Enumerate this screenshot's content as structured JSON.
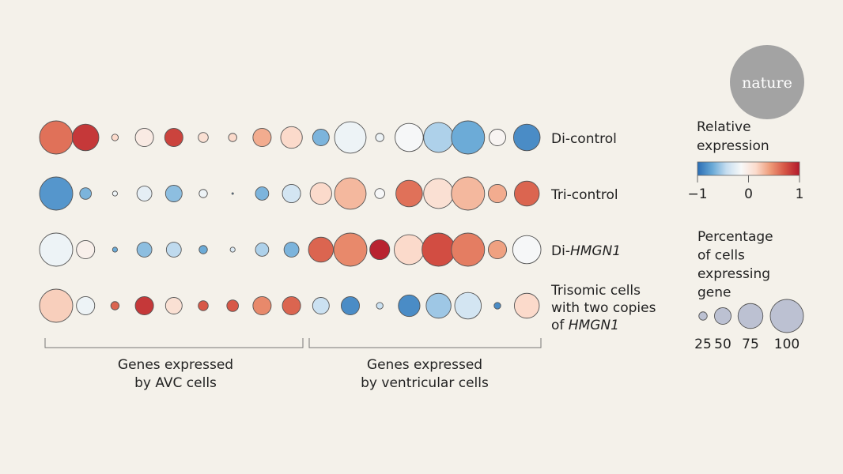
{
  "logo": {
    "text": "nature",
    "color": "#a3a3a3"
  },
  "chart_data": {
    "type": "dot-matrix",
    "rows": [
      {
        "label": "Di-control",
        "label_parts": [
          {
            "text": "Di-control",
            "italic": false
          }
        ]
      },
      {
        "label": "Tri-control",
        "label_parts": [
          {
            "text": "Tri-control",
            "italic": false
          }
        ]
      },
      {
        "label": "Di-HMGN1",
        "label_parts": [
          {
            "text": "Di-",
            "italic": false
          },
          {
            "text": "HMGN1",
            "italic": true
          }
        ]
      },
      {
        "label": "Trisomic cells with two copies of HMGN1",
        "lines": [
          [
            {
              "text": "Trisomic cells",
              "italic": false
            }
          ],
          [
            {
              "text": "with two copies",
              "italic": false
            }
          ],
          [
            {
              "text": "of ",
              "italic": false
            },
            {
              "text": "HMGN1",
              "italic": true
            }
          ]
        ]
      }
    ],
    "groups": [
      {
        "label_lines": [
          "Genes expressed",
          "by AVC cells"
        ],
        "columns": 9
      },
      {
        "label_lines": [
          "Genes expressed",
          "by ventricular cells"
        ],
        "columns": 8
      }
    ],
    "expression": [
      [
        0.6,
        0.85,
        0.15,
        0.0,
        0.8,
        0.1,
        0.15,
        0.35,
        0.15,
        -0.65,
        -0.2,
        -0.2,
        -0.15,
        -0.5,
        -0.7,
        -0.1,
        -0.85
      ],
      [
        -0.8,
        -0.65,
        -0.2,
        -0.25,
        -0.6,
        -0.2,
        -0.8,
        -0.65,
        -0.35,
        0.15,
        0.3,
        -0.15,
        0.6,
        0.1,
        0.3,
        0.35,
        0.65
      ],
      [
        -0.2,
        -0.05,
        -0.7,
        -0.6,
        -0.45,
        -0.7,
        -0.3,
        -0.5,
        -0.65,
        0.65,
        0.5,
        0.95,
        0.15,
        0.75,
        0.55,
        0.4,
        -0.15
      ],
      [
        0.2,
        -0.2,
        0.65,
        0.85,
        0.1,
        0.7,
        0.7,
        0.5,
        0.65,
        -0.4,
        -0.85,
        -0.4,
        -0.85,
        -0.55,
        -0.35,
        -0.85,
        0.15
      ]
    ],
    "percent_expressing": [
      [
        100,
        80,
        20,
        55,
        55,
        30,
        25,
        55,
        65,
        50,
        95,
        25,
        85,
        90,
        100,
        50,
        80
      ],
      [
        100,
        35,
        15,
        45,
        50,
        25,
        5,
        40,
        55,
        65,
        95,
        30,
        80,
        90,
        100,
        55,
        75
      ],
      [
        100,
        55,
        15,
        45,
        45,
        25,
        15,
        40,
        45,
        75,
        100,
        60,
        90,
        100,
        100,
        55,
        85
      ],
      [
        100,
        55,
        25,
        55,
        50,
        30,
        35,
        55,
        55,
        50,
        55,
        20,
        65,
        75,
        80,
        20,
        75
      ]
    ],
    "color_legend": {
      "title_lines": [
        "Relative",
        "expression"
      ],
      "ticks": [
        "−1",
        "0",
        "1"
      ],
      "range": [
        -1,
        1
      ],
      "colormap": [
        "#2a6db4",
        "#67a8d6",
        "#c6def0",
        "#f7f8f8",
        "#fbdccd",
        "#ee9a78",
        "#d65545",
        "#b2182b"
      ]
    },
    "size_legend": {
      "title_lines": [
        "Percentage",
        "of cells",
        "expressing",
        "gene"
      ],
      "values": [
        25,
        50,
        75,
        100
      ],
      "labels": [
        "25",
        "50",
        "75",
        "100"
      ],
      "color": "#bcc1d2"
    }
  }
}
